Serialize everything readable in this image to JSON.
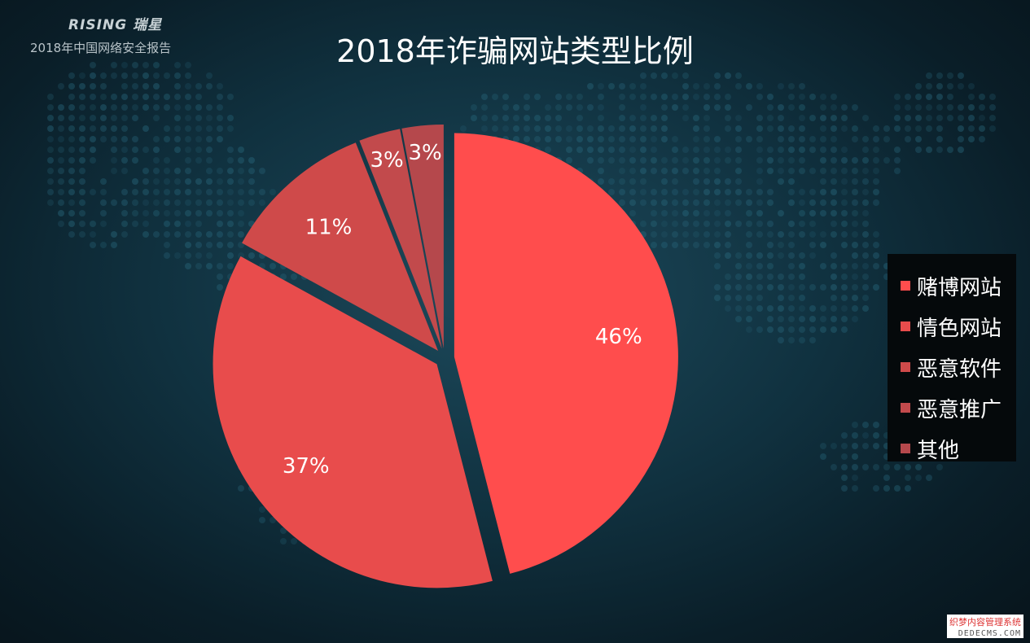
{
  "header": {
    "brand": "RISING 瑞星",
    "subtitle": "2018年中国网络安全报告"
  },
  "chart_data": {
    "type": "pie",
    "title": "2018年诈骗网站类型比例",
    "categories": [
      "赌博网站",
      "情色网站",
      "恶意软件",
      "恶意推广",
      "其他"
    ],
    "values": [
      46,
      37,
      11,
      3,
      3
    ],
    "labels": [
      "46%",
      "37%",
      "11%",
      "3%",
      "3%"
    ],
    "colors": [
      "#ff4d4d",
      "#e84c4c",
      "#cf4a4a",
      "#c24a4c",
      "#b5484c"
    ],
    "exploded": true,
    "legend_position": "right"
  },
  "watermark": {
    "line1": "织梦内容管理系统",
    "line2": "DEDECMS.COM"
  }
}
